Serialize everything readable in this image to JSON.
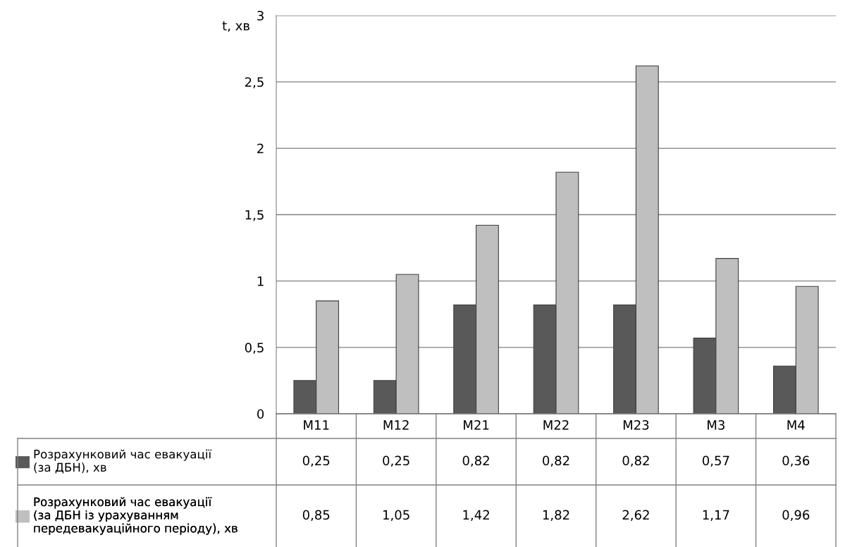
{
  "chart_data": {
    "type": "bar",
    "ylabel": "t, хв",
    "categories": [
      "M11",
      "M12",
      "M21",
      "M22",
      "M23",
      "M3",
      "M4"
    ],
    "series": [
      {
        "name": "Розрахунковий час евакуації\n(за ДБН), хв",
        "color": "#595959",
        "values": [
          0.25,
          0.25,
          0.82,
          0.82,
          0.82,
          0.57,
          0.36
        ],
        "value_labels": [
          "0,25",
          "0,25",
          "0,82",
          "0,82",
          "0,82",
          "0,57",
          "0,36"
        ]
      },
      {
        "name": "Розрахунковий час евакуації\n(за ДБН із урахуванням\nпередевакуаційного періоду), хв",
        "color": "#bfbfbf",
        "values": [
          0.85,
          1.05,
          1.42,
          1.82,
          2.62,
          1.17,
          0.96
        ],
        "value_labels": [
          "0,85",
          "1,05",
          "1,42",
          "1,82",
          "2,62",
          "1,17",
          "0,96"
        ]
      }
    ],
    "ylim": [
      0,
      3
    ],
    "yticks": [
      0,
      {
        "value": 0.5,
        "label": "0,5"
      },
      1,
      {
        "value": 1.5,
        "label": "1,5"
      },
      2,
      {
        "value": 2.5,
        "label": "2,5"
      },
      3
    ],
    "grid": "y",
    "legend": "bottom"
  }
}
